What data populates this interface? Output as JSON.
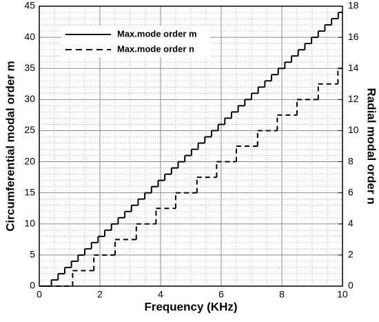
{
  "chart_data": {
    "type": "step",
    "xlabel": "Frequency (KHz)",
    "ylabel": "Circumferential modal order m",
    "y2label": "Radial modal order n",
    "xlim": [
      0,
      10
    ],
    "xticks": [
      0,
      2,
      4,
      6,
      8,
      10
    ],
    "ylim": [
      0,
      45
    ],
    "yticks": [
      0,
      5,
      10,
      15,
      20,
      25,
      30,
      35,
      40,
      45
    ],
    "y2lim": [
      0,
      18
    ],
    "y2ticks": [
      0,
      2,
      4,
      6,
      8,
      10,
      12,
      14,
      16,
      18
    ],
    "grid": true,
    "legend": "upper left",
    "series": [
      {
        "name": "Max.mode order m",
        "color": "#000000",
        "dash": "solid",
        "axis": "y",
        "x": [
          0,
          0.4,
          0.62,
          0.84,
          1.06,
          1.28,
          1.5,
          1.72,
          1.94,
          2.16,
          2.38,
          2.6,
          2.82,
          3.04,
          3.26,
          3.48,
          3.7,
          3.92,
          4.14,
          4.36,
          4.58,
          4.8,
          5.02,
          5.24,
          5.46,
          5.68,
          5.9,
          6.12,
          6.34,
          6.56,
          6.78,
          7,
          7.22,
          7.44,
          7.66,
          7.88,
          8.1,
          8.32,
          8.54,
          8.76,
          8.98,
          9.2,
          9.42,
          9.64,
          9.86
        ],
        "values": [
          0,
          1,
          2,
          3,
          4,
          5,
          6,
          7,
          8,
          9,
          10,
          11,
          12,
          13,
          14,
          15,
          16,
          17,
          18,
          19,
          20,
          21,
          22,
          23,
          24,
          25,
          26,
          27,
          28,
          29,
          30,
          31,
          32,
          33,
          34,
          35,
          36,
          37,
          38,
          39,
          40,
          41,
          42,
          43,
          44
        ]
      },
      {
        "name": "Max.mode order n",
        "color": "#000000",
        "dash": "dashed",
        "axis": "y2",
        "x": [
          0,
          1.1,
          1.8,
          2.5,
          3.2,
          3.85,
          4.5,
          5.2,
          5.85,
          6.5,
          7.2,
          7.85,
          8.5,
          9.2,
          9.85
        ],
        "values": [
          0,
          1,
          2,
          3,
          4,
          5,
          6,
          7,
          8,
          9,
          10,
          11,
          12,
          13,
          14
        ]
      }
    ]
  }
}
